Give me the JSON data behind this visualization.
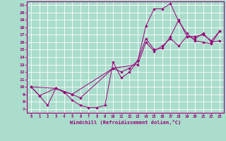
{
  "xlabel": "Windchill (Refroidissement éolien,°C)",
  "bg_color": "#aaddcc",
  "line_color": "#990077",
  "grid_color": "#ffffff",
  "xlim": [
    -0.5,
    23.5
  ],
  "ylim": [
    6.5,
    21.5
  ],
  "xticks": [
    0,
    1,
    2,
    3,
    4,
    5,
    6,
    7,
    8,
    9,
    10,
    11,
    12,
    13,
    14,
    15,
    16,
    17,
    18,
    19,
    20,
    21,
    22,
    23
  ],
  "yticks": [
    7,
    8,
    9,
    10,
    11,
    12,
    13,
    14,
    15,
    16,
    17,
    18,
    19,
    20,
    21
  ],
  "curves": [
    {
      "x": [
        0,
        1,
        2,
        3,
        4,
        5,
        6,
        7,
        8,
        9,
        10,
        11,
        12,
        13,
        14,
        15,
        16,
        17,
        18,
        19,
        20,
        21,
        22,
        23
      ],
      "y": [
        10,
        8.8,
        7.5,
        9.8,
        9.3,
        8.2,
        7.5,
        7.2,
        7.2,
        7.5,
        13.3,
        11.2,
        12.0,
        13.5,
        18.2,
        20.5,
        20.5,
        21.2,
        18.8,
        17.2,
        16.2,
        16.0,
        15.8,
        17.5
      ]
    },
    {
      "x": [
        0,
        1,
        3,
        4,
        5,
        6,
        10,
        11,
        12,
        13,
        14,
        15,
        16,
        17,
        18,
        19,
        20,
        21,
        22,
        23
      ],
      "y": [
        10,
        8.8,
        9.8,
        9.3,
        9.0,
        8.5,
        12.5,
        12.0,
        12.5,
        13.5,
        16.5,
        15.0,
        15.2,
        16.8,
        19.0,
        16.8,
        16.5,
        17.2,
        16.0,
        16.2
      ]
    },
    {
      "x": [
        0,
        3,
        5,
        10,
        13,
        14,
        15,
        16,
        17,
        18,
        19,
        20,
        21,
        22,
        23
      ],
      "y": [
        10,
        9.8,
        9.0,
        12.5,
        13.0,
        16.0,
        14.8,
        15.5,
        16.5,
        15.5,
        16.8,
        16.8,
        17.0,
        16.2,
        17.5
      ]
    }
  ]
}
